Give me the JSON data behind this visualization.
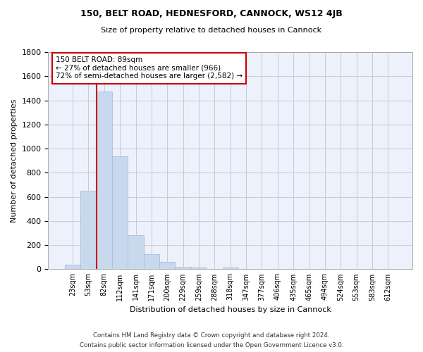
{
  "title": "150, BELT ROAD, HEDNESFORD, CANNOCK, WS12 4JB",
  "subtitle": "Size of property relative to detached houses in Cannock",
  "xlabel": "Distribution of detached houses by size in Cannock",
  "ylabel": "Number of detached properties",
  "bar_color": "#c8d9ee",
  "bar_edgecolor": "#a8bfd8",
  "background_color": "#edf1fb",
  "grid_color": "#c8c8d8",
  "categories": [
    "23sqm",
    "53sqm",
    "82sqm",
    "112sqm",
    "141sqm",
    "171sqm",
    "200sqm",
    "229sqm",
    "259sqm",
    "288sqm",
    "318sqm",
    "347sqm",
    "377sqm",
    "406sqm",
    "435sqm",
    "465sqm",
    "494sqm",
    "524sqm",
    "553sqm",
    "583sqm",
    "612sqm"
  ],
  "values": [
    40,
    648,
    1474,
    938,
    284,
    125,
    63,
    22,
    15,
    0,
    15,
    0,
    0,
    0,
    0,
    0,
    0,
    0,
    0,
    0,
    0
  ],
  "ylim": [
    0,
    1800
  ],
  "yticks": [
    0,
    200,
    400,
    600,
    800,
    1000,
    1200,
    1400,
    1600,
    1800
  ],
  "property_line_index": 2,
  "annotation_text": "150 BELT ROAD: 89sqm\n← 27% of detached houses are smaller (966)\n72% of semi-detached houses are larger (2,582) →",
  "annotation_box_color": "#ffffff",
  "annotation_border_color": "#cc0000",
  "property_line_color": "#cc0000",
  "footer_line1": "Contains HM Land Registry data © Crown copyright and database right 2024.",
  "footer_line2": "Contains public sector information licensed under the Open Government Licence v3.0."
}
